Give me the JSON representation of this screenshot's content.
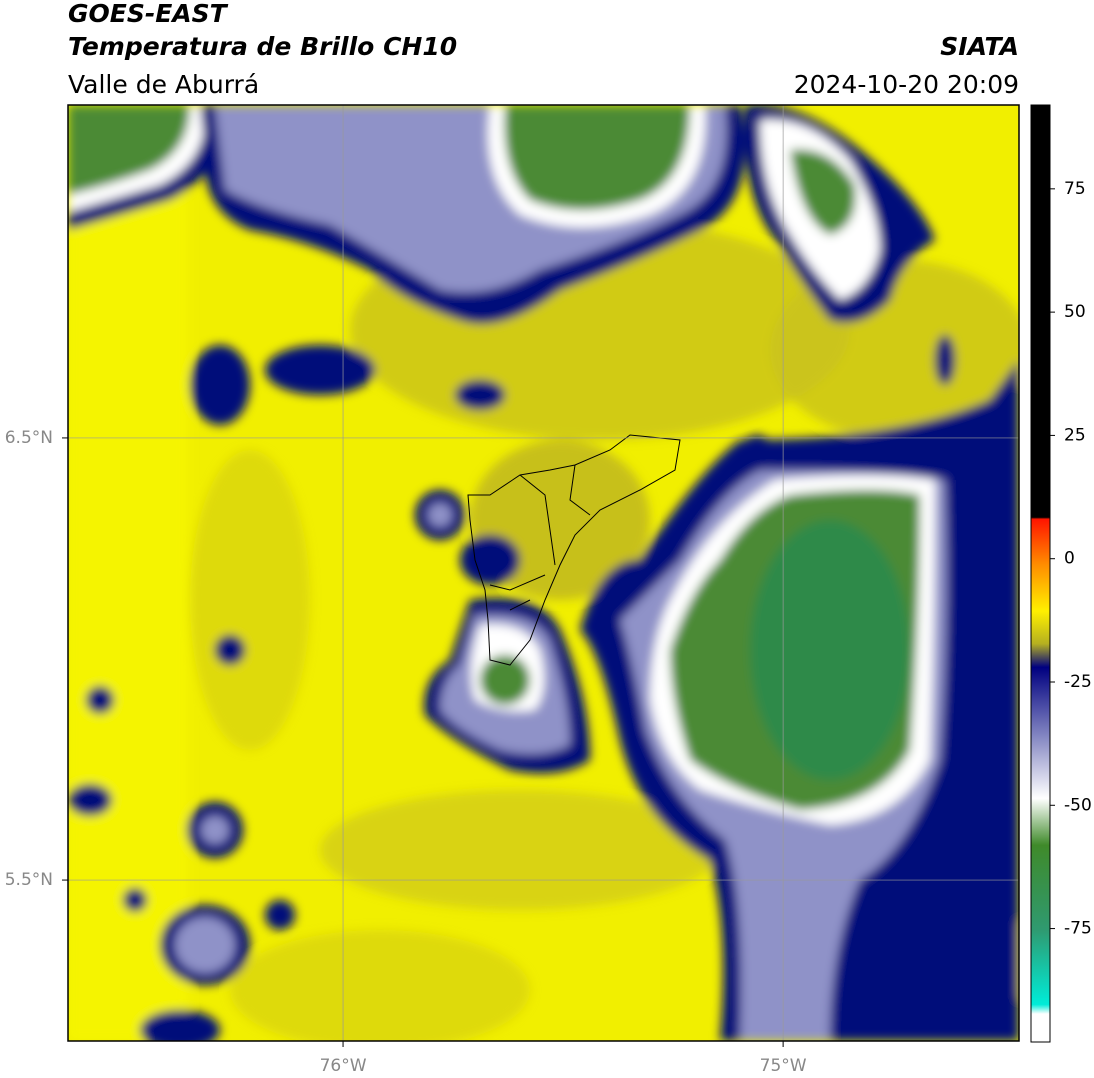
{
  "header": {
    "title": "GOES-EAST",
    "subtitle": "Temperatura de Brillo CH10",
    "region": "Valle de Aburrá",
    "source": "SIATA",
    "datetime": "2024-10-20 20:09"
  },
  "map": {
    "xlim": [
      -76.625,
      -74.464
    ],
    "ylim": [
      5.136,
      7.253
    ],
    "xticks": [
      {
        "value": -76,
        "label": "76°W"
      },
      {
        "value": -75,
        "label": "75°W"
      }
    ],
    "yticks": [
      {
        "value": 6.5,
        "label": "6.5°N"
      },
      {
        "value": 5.5,
        "label": "5.5°N"
      }
    ],
    "grid": true
  },
  "colorbar": {
    "lim": [
      -98,
      92
    ],
    "ticks": [
      75,
      50,
      25,
      0,
      -25,
      -50,
      -75
    ]
  }
}
